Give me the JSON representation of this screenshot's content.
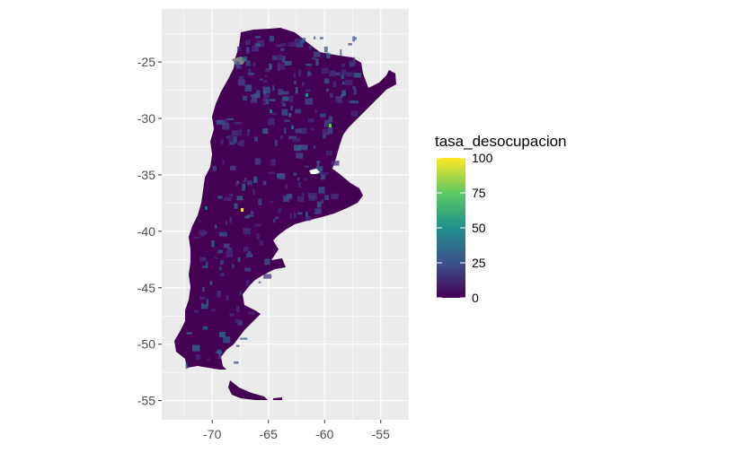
{
  "map": {
    "xaxis": {
      "ticks": [
        -70,
        -65,
        -60,
        -55
      ],
      "tick_labels": [
        "-70",
        "-65",
        "-60",
        "-55"
      ],
      "range": [
        -74.5,
        -52.5
      ]
    },
    "yaxis": {
      "ticks": [
        -25,
        -30,
        -35,
        -40,
        -45,
        -50,
        -55
      ],
      "tick_labels": [
        "-25",
        "-30",
        "-35",
        "-40",
        "-45",
        "-50",
        "-55"
      ],
      "range": [
        -56.7,
        -20.3
      ]
    },
    "panel_background": "#ebebeb",
    "grid_color": "#ffffff",
    "fill_base_color": "#440154",
    "na_color": "#808080"
  },
  "legend": {
    "title": "tasa_desocupacion",
    "scale": "viridis",
    "breaks": [
      100,
      75,
      50,
      25,
      0
    ],
    "break_labels": [
      "100",
      "75",
      "50",
      "25",
      "0"
    ],
    "limits": [
      0,
      100
    ],
    "colors": [
      "#440154",
      "#3b528b",
      "#21908c",
      "#5dc963",
      "#fde725"
    ]
  }
}
